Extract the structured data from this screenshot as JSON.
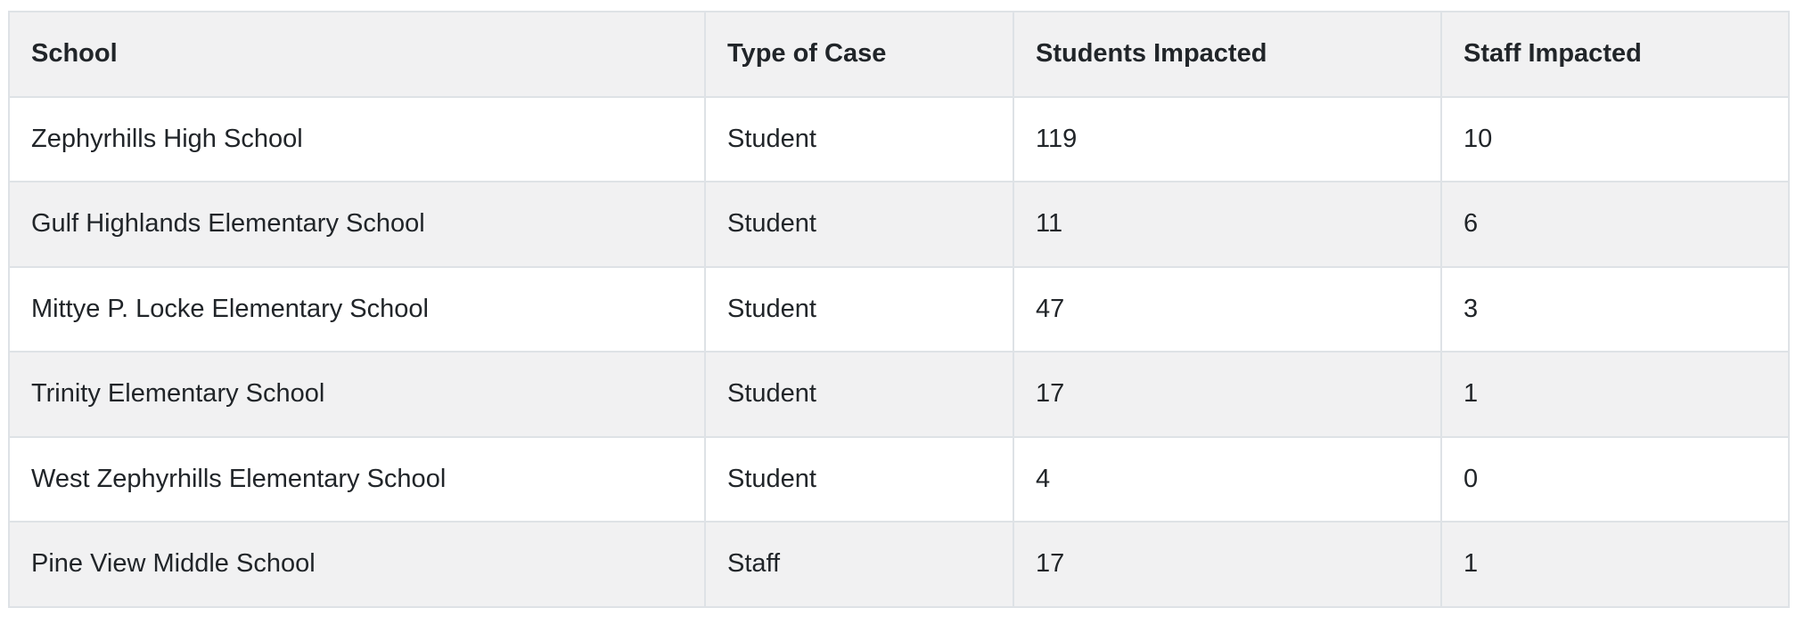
{
  "chart_data": {
    "type": "table",
    "title": "",
    "columns": [
      "School",
      "Type of Case",
      "Students Impacted",
      "Staff Impacted"
    ],
    "rows": [
      [
        "Zephyrhills High School",
        "Student",
        119,
        10
      ],
      [
        "Gulf Highlands Elementary School",
        "Student",
        11,
        6
      ],
      [
        "Mittye P. Locke Elementary School",
        "Student",
        47,
        3
      ],
      [
        "Trinity Elementary School",
        "Student",
        17,
        1
      ],
      [
        "West Zephyrhills Elementary School",
        "Student",
        4,
        0
      ],
      [
        "Pine View Middle School",
        "Staff",
        17,
        1
      ]
    ],
    "layout_hints": {
      "striped_rows": true,
      "header_background": "gray",
      "first_data_row_background": "white",
      "grid": "full borders"
    }
  },
  "table": {
    "columns": [
      {
        "key": "school",
        "label": "School"
      },
      {
        "key": "type",
        "label": "Type of Case"
      },
      {
        "key": "students",
        "label": "Students Impacted"
      },
      {
        "key": "staff",
        "label": "Staff Impacted"
      }
    ],
    "rows": [
      {
        "school": "Zephyrhills High School",
        "type": "Student",
        "students": "119",
        "staff": "10"
      },
      {
        "school": "Gulf Highlands Elementary School",
        "type": "Student",
        "students": "11",
        "staff": "6"
      },
      {
        "school": "Mittye P. Locke Elementary School",
        "type": "Student",
        "students": "47",
        "staff": "3"
      },
      {
        "school": "Trinity Elementary School",
        "type": "Student",
        "students": "17",
        "staff": "1"
      },
      {
        "school": "West Zephyrhills Elementary School",
        "type": "Student",
        "students": "4",
        "staff": "0"
      },
      {
        "school": "Pine View Middle School",
        "type": "Staff",
        "students": "17",
        "staff": "1"
      }
    ]
  },
  "colors": {
    "stripe": "#f1f1f2",
    "border": "#dee2e6",
    "text": "#212529",
    "page_background": "#ffffff"
  }
}
